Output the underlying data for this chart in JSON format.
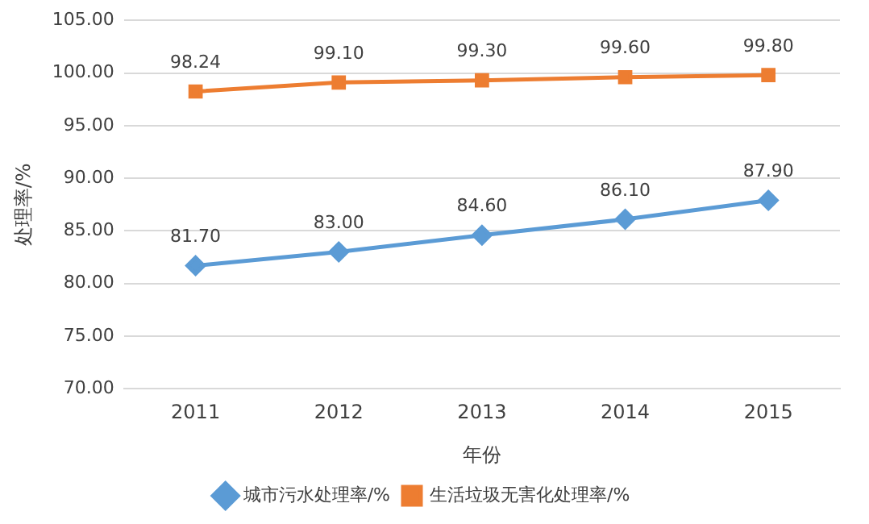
{
  "chart_data": {
    "type": "line",
    "xlabel": "年份",
    "ylabel": "处理率/%",
    "categories": [
      "2011",
      "2012",
      "2013",
      "2014",
      "2015"
    ],
    "series": [
      {
        "name": "城市污水处理率/%",
        "color": "#5b9bd5",
        "marker": "diamond",
        "values": [
          81.7,
          83.0,
          84.6,
          86.1,
          87.9
        ],
        "value_labels": [
          "81.70",
          "83.00",
          "84.60",
          "86.10",
          "87.90"
        ]
      },
      {
        "name": "生活垃圾无害化处理率/%",
        "color": "#ed7d31",
        "marker": "square",
        "values": [
          98.24,
          99.1,
          99.3,
          99.6,
          99.8
        ],
        "value_labels": [
          "98.24",
          "99.10",
          "99.30",
          "99.60",
          "99.80"
        ]
      }
    ],
    "ylim": [
      70,
      105
    ],
    "yticks": [
      {
        "value": 70,
        "label": "70.00"
      },
      {
        "value": 75,
        "label": "75.00"
      },
      {
        "value": 80,
        "label": "80.00"
      },
      {
        "value": 85,
        "label": "85.00"
      },
      {
        "value": 90,
        "label": "90.00"
      },
      {
        "value": 95,
        "label": "95.00"
      },
      {
        "value": 100,
        "label": "100.00"
      },
      {
        "value": 105,
        "label": "105.00"
      }
    ],
    "grid": "y",
    "legend": "bottom"
  }
}
